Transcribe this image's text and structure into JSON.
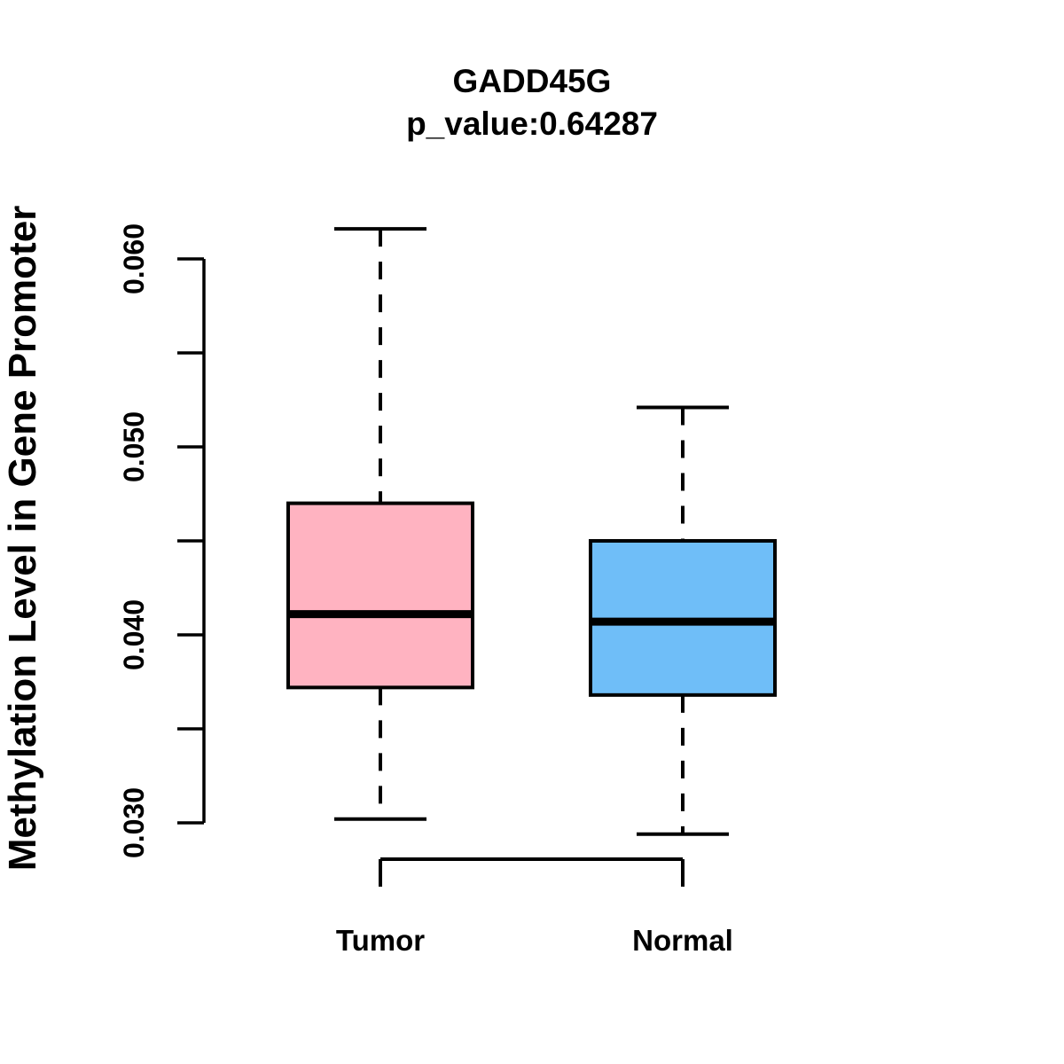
{
  "chart_data": {
    "type": "boxplot",
    "title": "GADD45G",
    "subtitle": "p_value:0.64287",
    "p_value": "0.64287",
    "ylabel": "Methylation Level in Gene Promoter",
    "xlabel": "",
    "categories": [
      "Tumor",
      "Normal"
    ],
    "legend": "none",
    "grid": false,
    "y_axis": {
      "range": [
        0.03,
        0.06
      ],
      "ticks": [
        0.03,
        0.035,
        0.04,
        0.045,
        0.05,
        0.055,
        0.06
      ],
      "labels": [
        {
          "value": 0.03,
          "text": "0.030"
        },
        {
          "value": 0.04,
          "text": "0.040"
        },
        {
          "value": 0.05,
          "text": "0.050"
        },
        {
          "value": 0.06,
          "text": "0.060"
        }
      ]
    },
    "series": [
      {
        "name": "Tumor",
        "color": "#FFB3C1",
        "whisker_low": 0.0302,
        "q1": 0.0372,
        "median": 0.0411,
        "q3": 0.047,
        "whisker_high": 0.0616,
        "outliers": []
      },
      {
        "name": "Normal",
        "color": "#6FBEF8",
        "whisker_low": 0.0294,
        "q1": 0.0368,
        "median": 0.0407,
        "q3": 0.045,
        "whisker_high": 0.0521,
        "outliers": []
      }
    ],
    "colors": {
      "stroke": "#000000",
      "background": "#ffffff",
      "tumor_fill": "#FFB3C1",
      "normal_fill": "#6FBEF8"
    }
  }
}
